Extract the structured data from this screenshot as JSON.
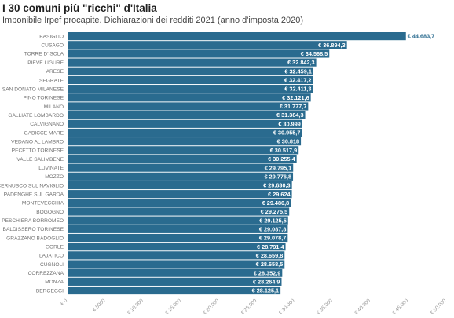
{
  "header": {
    "title": "I 30 comuni più \"ricchi\" d'Italia",
    "subtitle": "Imponibile Irpef procapite. Dichiarazioni dei redditi 2021 (anno d'imposta 2020)"
  },
  "chart_data": {
    "type": "bar",
    "orientation": "horizontal",
    "title": "I 30 comuni più \"ricchi\" d'Italia",
    "subtitle": "Imponibile Irpef procapite. Dichiarazioni dei redditi 2021 (anno d'imposta 2020)",
    "bar_color": "#2a6b8f",
    "label_inside_color": "#ffffff",
    "label_outside_color": "#2a6b8f",
    "categories": [
      "BASIGLIO",
      "CUSAGO",
      "TORRE D'ISOLA",
      "PIEVE LIGURE",
      "ARESE",
      "SEGRATE",
      "SAN DONATO MILANESE",
      "PINO TORINESE",
      "MILANO",
      "GALLIATE LOMBARDO",
      "CALVIGNANO",
      "GABICCE MARE",
      "VEDANO AL LAMBRO",
      "PECETTO TORINESE",
      "VALLE SALIMBENE",
      "LUVINATE",
      "MOZZO",
      "CERNUSCO SUL NAVIGLIO",
      "PADENGHE SUL GARDA",
      "MONTEVECCHIA",
      "BOGOGNO",
      "PESCHIERA BORROMEO",
      "BALDISSERO TORINESE",
      "GRAZZANO BADOGLIO",
      "GORLE",
      "LAJATICO",
      "CUGNOLI",
      "CORREZZANA",
      "MONZA",
      "BERGEGGI"
    ],
    "values": [
      44683.7,
      36894.3,
      34568.5,
      32842.3,
      32459.1,
      32417.2,
      32411.3,
      32121.6,
      31777.7,
      31384.3,
      30999,
      30955.7,
      30818,
      30517.9,
      30255.4,
      29795.1,
      29776.8,
      29630.3,
      29624,
      29480.8,
      29275.5,
      29125.5,
      29087.8,
      29078.7,
      28791.4,
      28659.8,
      28658.5,
      28352.9,
      28264.9,
      28125.1
    ],
    "value_labels": [
      "€ 44.683,7",
      "€ 36.894,3",
      "€ 34.568,5",
      "€ 32.842,3",
      "€ 32.459,1",
      "€ 32.417,2",
      "€ 32.411,3",
      "€ 32.121,6",
      "€ 31.777,7",
      "€ 31.384,3",
      "€ 30.999",
      "€ 30.955,7",
      "€ 30.818",
      "€ 30.517,9",
      "€ 30.255,4",
      "€ 29.795,1",
      "€ 29.776,8",
      "€ 29.630,3",
      "€ 29.624",
      "€ 29.480,8",
      "€ 29.275,5",
      "€ 29.125,5",
      "€ 29.087,8",
      "€ 29.078,7",
      "€ 28.791,4",
      "€ 28.659,8",
      "€ 28.658,5",
      "€ 28.352,9",
      "€ 28.264,9",
      "€ 28.125,1"
    ],
    "xlim": [
      0,
      50000
    ],
    "xticks": [
      0,
      5000,
      10000,
      15000,
      20000,
      25000,
      30000,
      35000,
      40000,
      45000,
      50000
    ],
    "xtick_labels": [
      "€ 0",
      "€ 5000",
      "€ 10.000",
      "€ 15.000",
      "€ 20.000",
      "€ 25.000",
      "€ 30.000",
      "€ 35.000",
      "€ 40.000",
      "€ 45.000",
      "€ 50.000"
    ],
    "grid": false
  }
}
